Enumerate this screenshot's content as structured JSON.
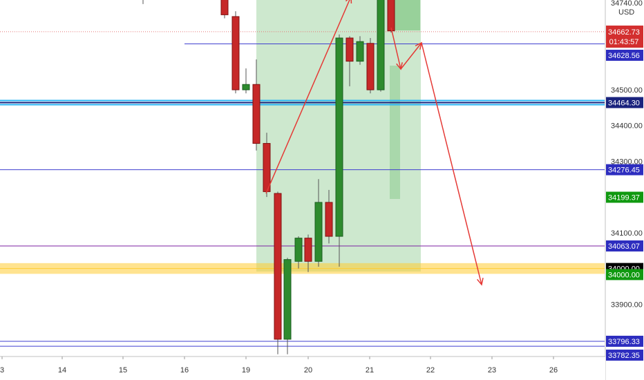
{
  "chart_data": {
    "type": "candlestick",
    "currency_label": "USD",
    "x_ticks": [
      "3",
      "14",
      "15",
      "16",
      "19",
      "20",
      "21",
      "22",
      "23",
      "26"
    ],
    "price_ticks": [
      "34500.00",
      "34400.00",
      "34300.00",
      "34100.00",
      "33900.00"
    ],
    "ylim": [
      33760,
      34760
    ],
    "current_price": {
      "value": 34662.73,
      "label": "34662.73",
      "countdown": "01:43:57",
      "color": "#d32f2f"
    },
    "top_label": "34740.00",
    "horizontal_levels": [
      {
        "value": 34628.56,
        "label": "34628.56",
        "color": "#3f3fcf",
        "tag_color": "#2d2dbf"
      },
      {
        "value": 34464.3,
        "label": "34464.30",
        "color": "#1a237e",
        "tag_color": "#1a237e",
        "highlight": "#29b6f6"
      },
      {
        "value": 34276.45,
        "label": "34276.45",
        "color": "#3f3fcf",
        "tag_color": "#2d2dbf"
      },
      {
        "value": 34063.07,
        "label": "34063.07",
        "color": "#7b1fa2",
        "tag_color": "#2d2dbf"
      },
      {
        "value": 34000.0,
        "label": "34000.00",
        "color": "#ffcc33",
        "tag_color": "#000000",
        "zone": [
          33985,
          34015
        ]
      },
      {
        "value": 33796.33,
        "label": "33796.33",
        "color": "#3f3fcf",
        "tag_color": "#2d2dbf"
      },
      {
        "value": 33782.35,
        "label": "33782.35",
        "color": "#3f3fcf",
        "tag_color": "#2d2dbf"
      }
    ],
    "green_tags": [
      {
        "value": 34199.37,
        "label": "34199.37"
      },
      {
        "value": 33983.0,
        "label": "34000.00"
      }
    ],
    "candles": [
      {
        "x": 207,
        "open": 34760,
        "high": 34770,
        "low": 34740,
        "close": 34760,
        "dir": "doji"
      },
      {
        "x": 325,
        "open": 34760,
        "high": 34770,
        "low": 34700,
        "close": 34710,
        "dir": "down"
      },
      {
        "x": 341,
        "open": 34705,
        "high": 34720,
        "low": 34490,
        "close": 34500,
        "dir": "down"
      },
      {
        "x": 356,
        "open": 34500,
        "high": 34560,
        "low": 34490,
        "close": 34515,
        "dir": "up"
      },
      {
        "x": 371,
        "open": 34515,
        "high": 34585,
        "low": 34330,
        "close": 34350,
        "dir": "down"
      },
      {
        "x": 386,
        "open": 34350,
        "high": 34380,
        "low": 34200,
        "close": 34215,
        "dir": "down"
      },
      {
        "x": 402,
        "open": 34210,
        "high": 34215,
        "low": 33760,
        "close": 33802,
        "dir": "down"
      },
      {
        "x": 416,
        "open": 33802,
        "high": 34030,
        "low": 33760,
        "close": 34025,
        "dir": "up"
      },
      {
        "x": 432,
        "open": 34020,
        "high": 34090,
        "low": 34000,
        "close": 34085,
        "dir": "up"
      },
      {
        "x": 446,
        "open": 34085,
        "high": 34095,
        "low": 33990,
        "close": 34020,
        "dir": "down"
      },
      {
        "x": 461,
        "open": 34020,
        "high": 34250,
        "low": 34005,
        "close": 34185,
        "dir": "up"
      },
      {
        "x": 476,
        "open": 34185,
        "high": 34220,
        "low": 34070,
        "close": 34090,
        "dir": "down"
      },
      {
        "x": 491,
        "open": 34090,
        "high": 34655,
        "low": 34005,
        "close": 34645,
        "dir": "up"
      },
      {
        "x": 506,
        "open": 34645,
        "high": 34650,
        "low": 34510,
        "close": 34580,
        "dir": "down"
      },
      {
        "x": 521,
        "open": 34580,
        "high": 34650,
        "low": 34570,
        "close": 34635,
        "dir": "up"
      },
      {
        "x": 536,
        "open": 34630,
        "high": 34645,
        "low": 34490,
        "close": 34500,
        "dir": "down"
      },
      {
        "x": 551,
        "open": 34500,
        "high": 34770,
        "low": 34495,
        "close": 34755,
        "dir": "up"
      },
      {
        "x": 566,
        "open": 34755,
        "high": 34765,
        "low": 34660,
        "close": 34665,
        "dir": "down"
      }
    ],
    "colors": {
      "up": "#2e8b2e",
      "down": "#c62828",
      "up_outline": "#1b5e20",
      "down_outline": "#7f1010"
    }
  }
}
